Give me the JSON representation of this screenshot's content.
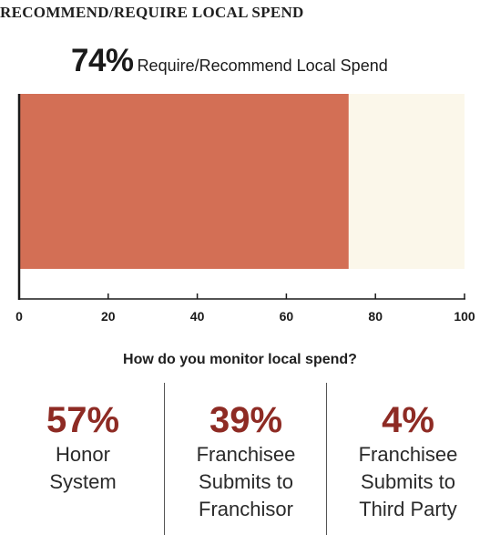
{
  "heading": "RECOMMEND/REQUIRE LOCAL SPEND",
  "headline": {
    "value": "74%",
    "label": "Require/Recommend Local Spend"
  },
  "chart_data": {
    "type": "bar",
    "orientation": "horizontal",
    "stacked": true,
    "categories": [
      ""
    ],
    "series": [
      {
        "values": [
          74
        ],
        "color": "#d36f55"
      },
      {
        "values": [
          26
        ],
        "color": "#fbf7ea"
      }
    ],
    "xlim": [
      0,
      100
    ],
    "xticks": [
      "0",
      "20",
      "40",
      "60",
      "80",
      "100"
    ],
    "grid": false
  },
  "question": "How do you monitor local spend?",
  "stats": [
    {
      "value": "57%",
      "line1": "Honor",
      "line2": "System",
      "line3": ""
    },
    {
      "value": "39%",
      "line1": "Franchisee",
      "line2": "Submits to",
      "line3": "Franchisor"
    },
    {
      "value": "4%",
      "line1": "Franchisee",
      "line2": "Submits to",
      "line3": "Third Party"
    }
  ],
  "colors": {
    "accent": "#8e2b24",
    "bar": "#d36f55",
    "remainder": "#fbf7ea"
  }
}
